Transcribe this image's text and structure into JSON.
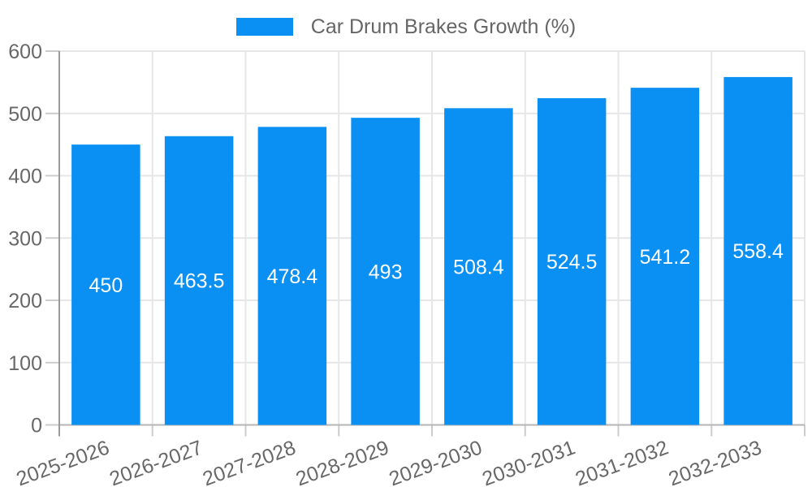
{
  "legend": {
    "title": "Car Drum Brakes Growth (%)"
  },
  "chart_data": {
    "type": "bar",
    "title": "Car Drum Brakes Growth (%)",
    "categories": [
      "2025-2026",
      "2026-2027",
      "2027-2028",
      "2028-2029",
      "2029-2030",
      "2030-2031",
      "2031-2032",
      "2032-2033"
    ],
    "series": [
      {
        "name": "Car Drum Brakes Growth (%)",
        "values": [
          450,
          463.5,
          478.4,
          493,
          508.4,
          524.5,
          541.2,
          558.4
        ],
        "value_labels": [
          "450",
          "463.5",
          "478.4",
          "493",
          "508.4",
          "524.5",
          "541.2",
          "558.4"
        ]
      }
    ],
    "xlabel": "",
    "ylabel": "",
    "ylim": [
      0,
      600
    ],
    "y_ticks": [
      0,
      100,
      200,
      300,
      400,
      500,
      600
    ],
    "grid": true,
    "legend_position": "top",
    "x_label_rotation_deg": -20,
    "colors": {
      "bar": "#0a90f3",
      "value_label": "#ffffff",
      "axis_text": "#686868",
      "grid_line": "#e6e6e6",
      "y_axis_line": "#9a9a9a",
      "tick_mark": "#cccccc",
      "bottom_axis_line": "#b5b5b5"
    }
  }
}
